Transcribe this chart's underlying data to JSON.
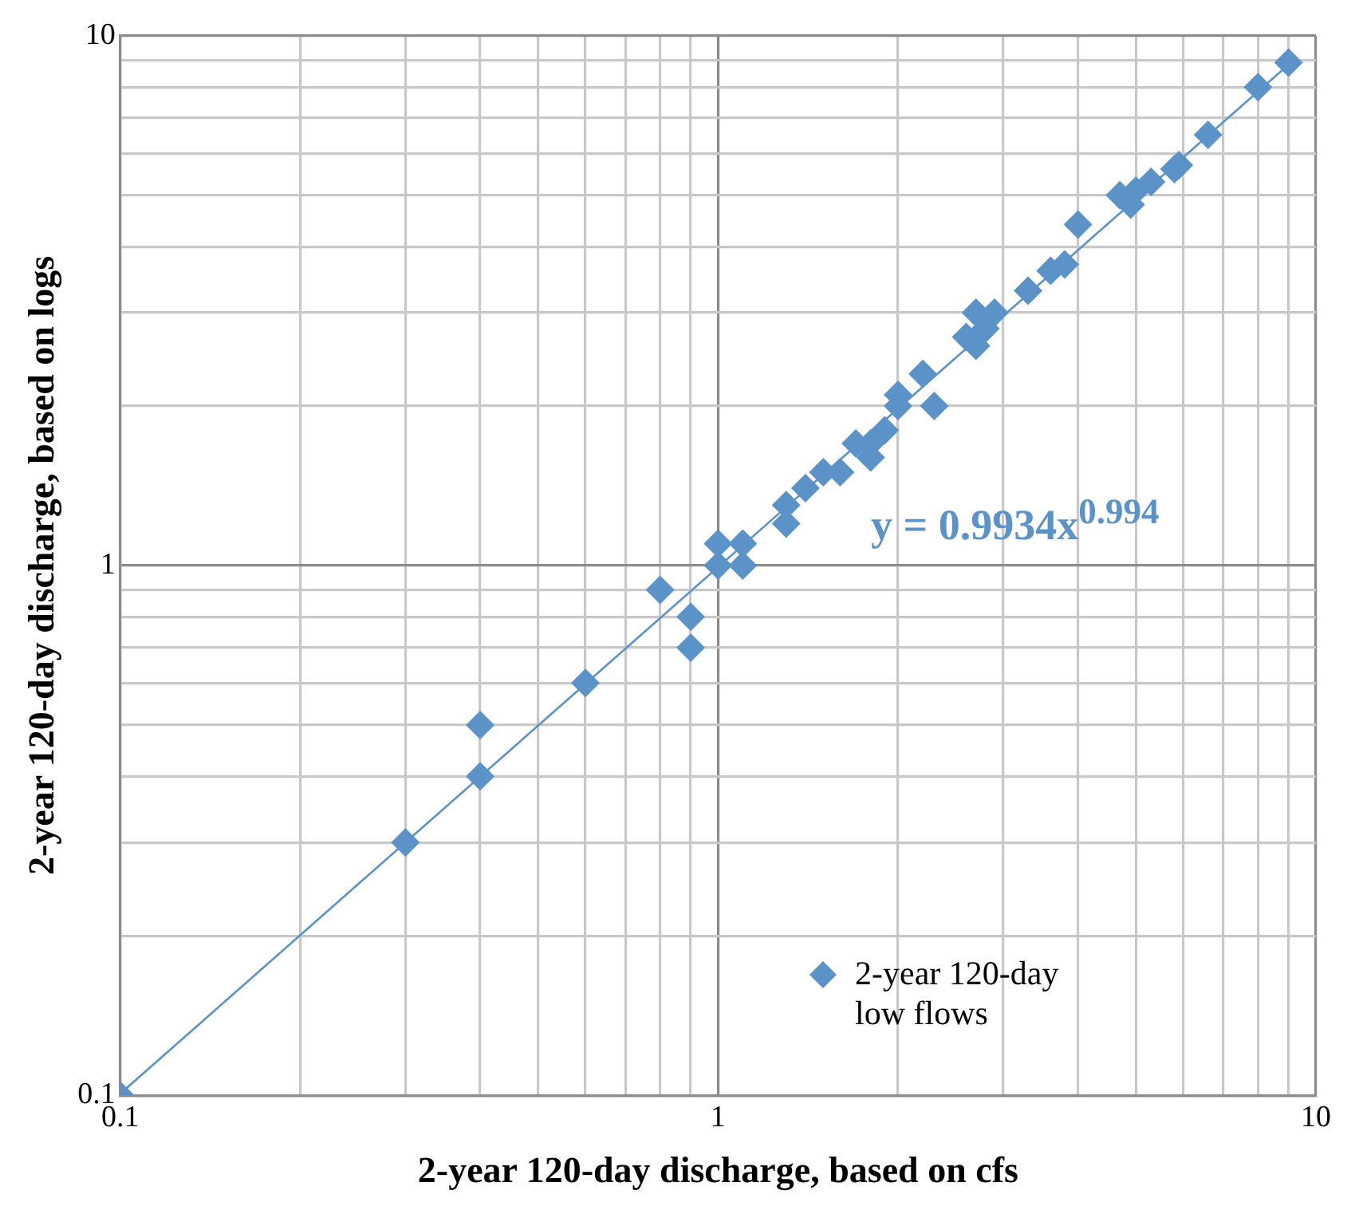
{
  "chart_data": {
    "type": "scatter",
    "xlabel": "2-year 120-day discharge, based on cfs",
    "ylabel": "2-year 120-day discharge, based on logs",
    "log": "xy",
    "grid": true,
    "legend": "bottom right",
    "marker": "diamond",
    "xlim": [
      0.1,
      10
    ],
    "ylim": [
      0.1,
      10
    ],
    "xticks": [
      0.1,
      {
        "value": 0.2,
        "label": null
      },
      {
        "value": 0.3,
        "label": null
      },
      {
        "value": 0.4,
        "label": null
      },
      {
        "value": 0.5,
        "label": null
      },
      {
        "value": 0.6,
        "label": null
      },
      {
        "value": 0.7,
        "label": null
      },
      {
        "value": 0.8,
        "label": null
      },
      {
        "value": 0.9,
        "label": null
      },
      1,
      {
        "value": 2,
        "label": null
      },
      {
        "value": 3,
        "label": null
      },
      {
        "value": 4,
        "label": null
      },
      {
        "value": 5,
        "label": null
      },
      {
        "value": 6,
        "label": null
      },
      {
        "value": 7,
        "label": null
      },
      {
        "value": 8,
        "label": null
      },
      {
        "value": 9,
        "label": null
      },
      10
    ],
    "yticks": [
      0.1,
      {
        "value": 0.2,
        "label": null
      },
      {
        "value": 0.3,
        "label": null
      },
      {
        "value": 0.4,
        "label": null
      },
      {
        "value": 0.5,
        "label": null
      },
      {
        "value": 0.6,
        "label": null
      },
      {
        "value": 0.7,
        "label": null
      },
      {
        "value": 0.8,
        "label": null
      },
      {
        "value": 0.9,
        "label": null
      },
      1,
      {
        "value": 2,
        "label": null
      },
      {
        "value": 3,
        "label": null
      },
      {
        "value": 4,
        "label": null
      },
      {
        "value": 5,
        "label": null
      },
      {
        "value": 6,
        "label": null
      },
      {
        "value": 7,
        "label": null
      },
      {
        "value": 8,
        "label": null
      },
      {
        "value": 9,
        "label": null
      },
      10
    ],
    "annotations": [
      "y = 0.9934x$^{0.994}$"
    ],
    "series": [
      {
        "name": "2-year 120-day low flows",
        "color": "#5b93c8",
        "type": "scatter",
        "x": [
          0.1,
          0.3,
          0.4,
          0.4,
          0.6,
          0.8,
          0.9,
          0.9,
          1.0,
          1.0,
          1.1,
          1.1,
          1.3,
          1.3,
          1.4,
          1.5,
          1.6,
          1.7,
          1.8,
          1.8,
          1.9,
          2.0,
          2.0,
          2.2,
          2.3,
          2.6,
          2.7,
          2.7,
          2.8,
          2.9,
          3.3,
          3.6,
          3.8,
          4.0,
          4.7,
          4.9,
          5.0,
          5.3,
          5.8,
          5.9,
          6.6,
          8.0,
          9.0
        ],
        "values": [
          0.1,
          0.3,
          0.4,
          0.5,
          0.6,
          0.9,
          0.8,
          0.7,
          1.0,
          1.1,
          1.0,
          1.1,
          1.2,
          1.3,
          1.4,
          1.5,
          1.5,
          1.7,
          1.7,
          1.6,
          1.8,
          2.0,
          2.1,
          2.3,
          2.0,
          2.7,
          3.0,
          2.6,
          2.8,
          3.0,
          3.3,
          3.6,
          3.7,
          4.4,
          5.0,
          4.8,
          5.1,
          5.3,
          5.6,
          5.7,
          6.5,
          8.0,
          8.9
        ]
      },
      {
        "color": "#5b93c8",
        "type": "line",
        "marker": "none",
        "x": [
          0.1,
          9.0
        ],
        "values": [
          0.1007,
          8.82
        ]
      }
    ]
  }
}
